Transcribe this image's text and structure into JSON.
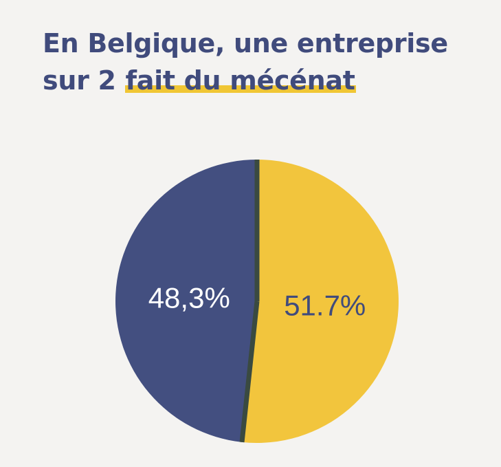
{
  "title": {
    "line1": "En Belgique, une entreprise",
    "line2_plain": "sur 2 ",
    "line2_highlight": "fait du mécénat"
  },
  "colors": {
    "background": "#f4f3f1",
    "title": "#404b7c",
    "highlight": "#f0c634",
    "slice_blue": "#434f80",
    "slice_yellow": "#f2c53d",
    "divider": "#3a4a40",
    "label_on_blue": "#ffffff",
    "label_on_yellow": "#404b7c"
  },
  "chart_data": {
    "type": "pie",
    "slices": [
      {
        "label": "48,3%",
        "value": 48.3,
        "color": "#434f80"
      },
      {
        "label": "51.7%",
        "value": 51.7,
        "color": "#f2c53d"
      }
    ]
  }
}
